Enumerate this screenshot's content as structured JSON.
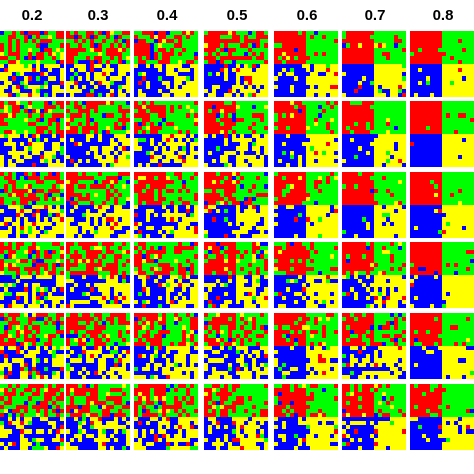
{
  "figure": {
    "columns": [
      "0.2",
      "0.3",
      "0.4",
      "0.5",
      "0.6",
      "0.7",
      "0.8"
    ],
    "rows": 6,
    "quadrants": [
      "red",
      "green",
      "blue",
      "yellow"
    ],
    "colors": {
      "red": "#ff0000",
      "green": "#00ff00",
      "blue": "#0000ff",
      "yellow": "#ffff00",
      "background": "#ffffff"
    },
    "noise_by_row": [
      [
        0.62,
        0.55,
        0.42,
        0.34,
        0.18,
        0.16,
        0.06
      ],
      [
        0.6,
        0.38,
        0.4,
        0.3,
        0.2,
        0.14,
        0.08
      ],
      [
        0.58,
        0.48,
        0.38,
        0.3,
        0.18,
        0.12,
        0.08
      ],
      [
        0.6,
        0.46,
        0.44,
        0.36,
        0.22,
        0.22,
        0.1
      ],
      [
        0.62,
        0.5,
        0.44,
        0.4,
        0.28,
        0.28,
        0.1
      ],
      [
        0.64,
        0.52,
        0.44,
        0.34,
        0.26,
        0.22,
        0.12
      ]
    ]
  }
}
